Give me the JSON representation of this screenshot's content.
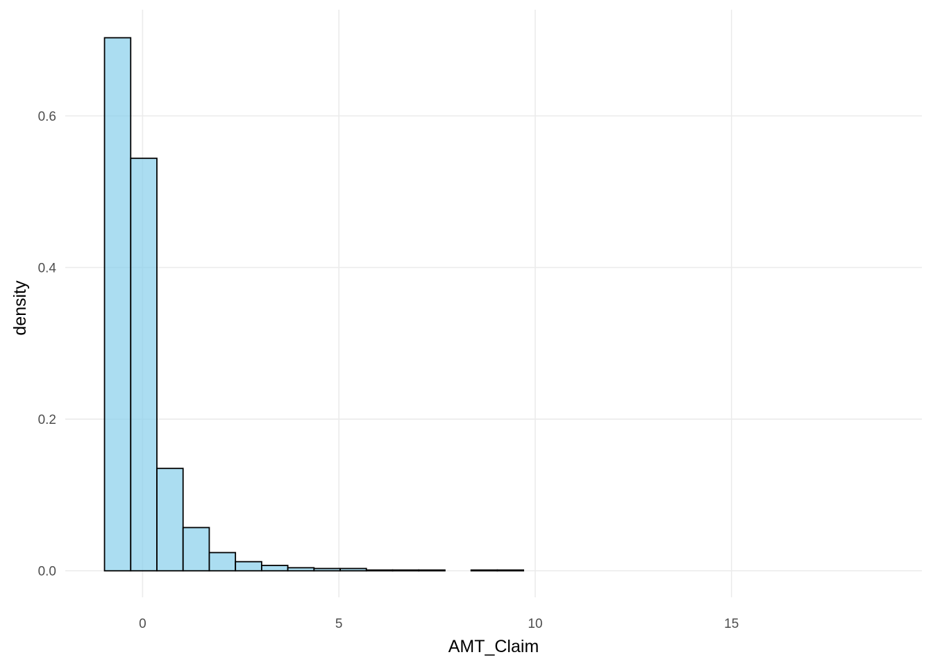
{
  "chart_data": {
    "type": "bar",
    "subtype": "histogram",
    "title": "",
    "xlabel": "AMT_Claim",
    "ylabel": "density",
    "xlim": [
      -1.97,
      19.85
    ],
    "ylim": [
      -0.035,
      0.74
    ],
    "x_ticks": [
      0,
      5,
      10,
      15
    ],
    "x_tick_labels": [
      "0",
      "5",
      "10",
      "15"
    ],
    "y_ticks": [
      0.0,
      0.2,
      0.4,
      0.6
    ],
    "y_tick_labels": [
      "0.0",
      "0.2",
      "0.4",
      "0.6"
    ],
    "grid": true,
    "legend": "none",
    "bin_width": 0.667,
    "bin_start": -0.97,
    "values": [
      0.703,
      0.544,
      0.135,
      0.057,
      0.024,
      0.012,
      0.007,
      0.004,
      0.003,
      0.003,
      0.001,
      0.001,
      0.001,
      0.0,
      0.001,
      0.001,
      0.0,
      0.0,
      0.0,
      0.0,
      0.0,
      0.0,
      0.0,
      0.0,
      0.0,
      0.0,
      0.0,
      0.0,
      0.0,
      0.0
    ],
    "colors": {
      "fill": "#87ceeb",
      "outline": "#000000",
      "grid": "#ebebeb"
    }
  }
}
